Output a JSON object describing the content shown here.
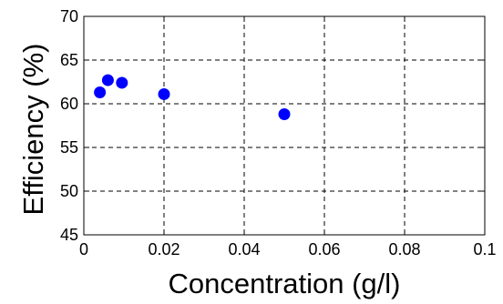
{
  "chart_data": {
    "type": "scatter",
    "xlabel": "Concentration (g/l)",
    "ylabel": "Efficiency (%)",
    "xlim": [
      0,
      0.1
    ],
    "ylim": [
      45,
      70
    ],
    "x_ticks": [
      "0",
      "0.02",
      "0.04",
      "0.06",
      "0.08",
      "0.1"
    ],
    "y_ticks": [
      "45",
      "50",
      "55",
      "60",
      "65",
      "70"
    ],
    "grid": true,
    "grid_style": "dashed",
    "marker_color": "#0000ff",
    "series": [
      {
        "points": [
          {
            "x": 0.004,
            "y": 61.3
          },
          {
            "x": 0.006,
            "y": 62.7
          },
          {
            "x": 0.0095,
            "y": 62.4
          },
          {
            "x": 0.02,
            "y": 61.1
          },
          {
            "x": 0.05,
            "y": 58.8
          }
        ]
      }
    ]
  }
}
